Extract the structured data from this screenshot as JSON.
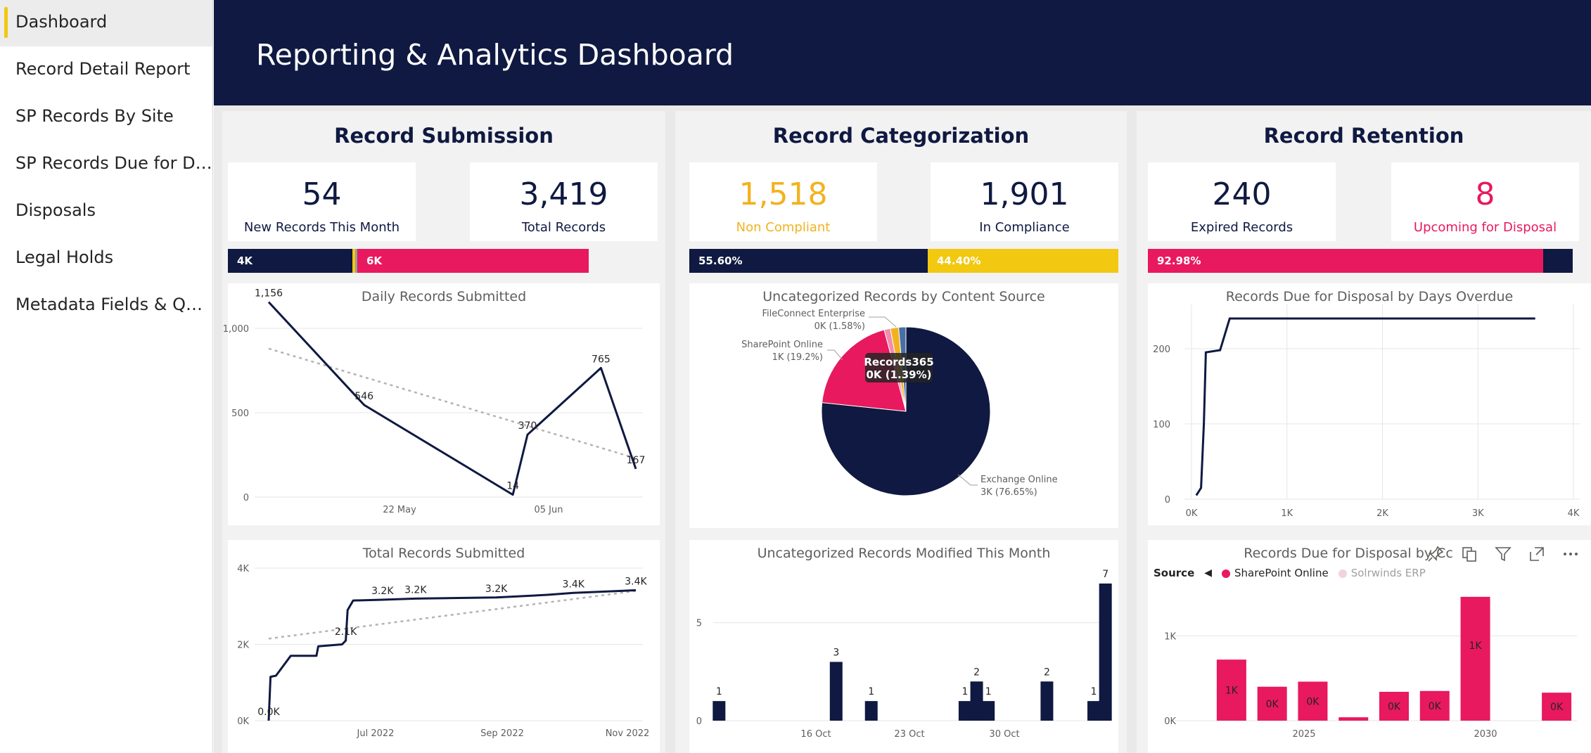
{
  "nav": {
    "items": [
      {
        "label": "Dashboard",
        "active": true
      },
      {
        "label": "Record Detail Report"
      },
      {
        "label": "SP Records By Site"
      },
      {
        "label": "SP Records Due for Disp..."
      },
      {
        "label": "Disposals"
      },
      {
        "label": "Legal Holds"
      },
      {
        "label": "Metadata Fields & Quer..."
      }
    ]
  },
  "header": {
    "title": "Reporting & Analytics Dashboard"
  },
  "colors": {
    "navy": "#0f1941",
    "pink": "#e8195e",
    "yellow": "#f2c811",
    "trend": "#b3b3b3"
  },
  "panels": {
    "submission": {
      "title": "Record Submission",
      "cards": [
        {
          "value": "54",
          "label": "New Records This Month"
        },
        {
          "value": "3,419",
          "label": "Total Records"
        }
      ],
      "bar": {
        "segments": [
          {
            "label": "4K",
            "fraction": 0.35
          },
          {
            "label": "6K",
            "fraction": 0.62
          }
        ]
      }
    },
    "categorization": {
      "title": "Record Categorization",
      "cards": [
        {
          "value": "1,518",
          "label": "Non Compliant"
        },
        {
          "value": "1,901",
          "label": "In Compliance"
        }
      ],
      "bar": {
        "segments": [
          {
            "label": "55.60%",
            "fraction": 0.556
          },
          {
            "label": "44.40%",
            "fraction": 0.444
          }
        ]
      }
    },
    "retention": {
      "title": "Record Retention",
      "cards": [
        {
          "value": "240",
          "label": "Expired Records"
        },
        {
          "value": "8",
          "label": "Upcoming for Disposal"
        }
      ],
      "bar": {
        "segments": [
          {
            "label": "92.98%",
            "fraction": 0.9298
          },
          {
            "label": "",
            "fraction": 0.0702
          }
        ]
      }
    }
  },
  "chart_data": [
    {
      "id": "daily",
      "type": "line",
      "title": "Daily Records Submitted",
      "x_ticks": [
        "22 May",
        "05 Jun"
      ],
      "y_ticks": [
        "0",
        "500",
        "1,000"
      ],
      "ylim": [
        0,
        1100
      ],
      "points": [
        {
          "t": 0,
          "y": 1156,
          "label": "1,156"
        },
        {
          "t": 0.26,
          "y": 546,
          "label": "546"
        },
        {
          "t": 0.665,
          "y": 14,
          "label": "14"
        },
        {
          "t": 0.705,
          "y": 370,
          "label": "370"
        },
        {
          "t": 0.905,
          "y": 765,
          "label": "765"
        },
        {
          "t": 1.0,
          "y": 167,
          "label": "167"
        }
      ],
      "trend": [
        880,
        230
      ]
    },
    {
      "id": "total",
      "type": "line",
      "title": "Total Records Submitted",
      "x_ticks": [
        "Jul 2022",
        "Sep 2022",
        "Nov 2022"
      ],
      "y_ticks": [
        "0K",
        "2K",
        "4K"
      ],
      "ylim": [
        0,
        4000
      ],
      "points": [
        {
          "t": 0.0,
          "y": 0,
          "label": "0.0K"
        },
        {
          "t": 0.005,
          "y": 1150
        },
        {
          "t": 0.02,
          "y": 1180
        },
        {
          "t": 0.06,
          "y": 1700
        },
        {
          "t": 0.13,
          "y": 1700
        },
        {
          "t": 0.135,
          "y": 1950
        },
        {
          "t": 0.2,
          "y": 2000
        },
        {
          "t": 0.21,
          "y": 2100,
          "label": "2.1K"
        },
        {
          "t": 0.215,
          "y": 2900
        },
        {
          "t": 0.23,
          "y": 3150
        },
        {
          "t": 0.31,
          "y": 3170,
          "label": "3.2K"
        },
        {
          "t": 0.4,
          "y": 3200,
          "label": "3.2K"
        },
        {
          "t": 0.62,
          "y": 3230,
          "label": "3.2K"
        },
        {
          "t": 0.76,
          "y": 3300
        },
        {
          "t": 0.83,
          "y": 3350,
          "label": "3.4K"
        },
        {
          "t": 1.0,
          "y": 3420,
          "label": "3.4K"
        }
      ],
      "trend": [
        2150,
        3400
      ]
    },
    {
      "id": "pie",
      "type": "pie",
      "title": "Uncategorized Records by Content Source",
      "slices": [
        {
          "name": "Exchange Online",
          "value": 76.65,
          "label": "Exchange Online",
          "sub": "3K (76.65%)",
          "color": "#0f1941"
        },
        {
          "name": "SharePoint Online",
          "value": 19.2,
          "label": "SharePoint Online",
          "sub": "1K (19.2%)",
          "color": "#e8195e"
        },
        {
          "name": "Other",
          "value": 1.18,
          "label": "",
          "sub": "",
          "color": "#f08cb0"
        },
        {
          "name": "FileConnect Enterprise",
          "value": 1.58,
          "label": "FileConnect Enterprise",
          "sub": "0K (1.58%)",
          "color": "#f2b21f"
        },
        {
          "name": "Records365",
          "value": 1.39,
          "label": "Records365",
          "sub": "0K (1.39%)",
          "color": "#4a6fa5"
        }
      ]
    },
    {
      "id": "modified",
      "type": "bar",
      "title": "Uncategorized Records Modified This Month",
      "x_ticks": [
        "16 Oct",
        "23 Oct",
        "30 Oct"
      ],
      "y_ticks": [
        "0",
        "5"
      ],
      "ylim": [
        0,
        7.5
      ],
      "bars": [
        {
          "slot": 0,
          "value": 1
        },
        {
          "slot": 10,
          "value": 3
        },
        {
          "slot": 13,
          "value": 1
        },
        {
          "slot": 21,
          "value": 1
        },
        {
          "slot": 22,
          "value": 2
        },
        {
          "slot": 23,
          "value": 1
        },
        {
          "slot": 28,
          "value": 2
        },
        {
          "slot": 32,
          "value": 1
        },
        {
          "slot": 33,
          "value": 7
        }
      ],
      "slots": 34
    },
    {
      "id": "overdue",
      "type": "line",
      "title": "Records Due for Disposal by Days Overdue",
      "x_ticks": [
        "0K",
        "1K",
        "2K",
        "3K",
        "4K"
      ],
      "xlim": [
        0,
        4000
      ],
      "y_ticks": [
        "0",
        "100",
        "200"
      ],
      "ylim": [
        0,
        240
      ],
      "points": [
        {
          "x": 50,
          "y": 5
        },
        {
          "x": 100,
          "y": 15
        },
        {
          "x": 130,
          "y": 100
        },
        {
          "x": 150,
          "y": 195
        },
        {
          "x": 300,
          "y": 198
        },
        {
          "x": 400,
          "y": 240
        },
        {
          "x": 3600,
          "y": 240
        }
      ]
    },
    {
      "id": "due-source",
      "type": "bar",
      "title": "Records Due for Disposal by Cc",
      "legend_title": "Source",
      "legend": [
        {
          "name": "SharePoint Online",
          "color": "#e8195e"
        },
        {
          "name": "Solrwinds ERP",
          "color": "#f1d3df"
        }
      ],
      "x_ticks": [
        "2025",
        "2030"
      ],
      "y_ticks": [
        "0K",
        "1K"
      ],
      "ylim": [
        0,
        1550
      ],
      "bars": [
        {
          "slot": 0,
          "value": 720,
          "label": "1K"
        },
        {
          "slot": 1,
          "value": 400,
          "label": "0K"
        },
        {
          "slot": 2,
          "value": 460,
          "label": "0K"
        },
        {
          "slot": 3,
          "value": 40,
          "label": ""
        },
        {
          "slot": 4,
          "value": 340,
          "label": "0K"
        },
        {
          "slot": 5,
          "value": 350,
          "label": "0K"
        },
        {
          "slot": 6,
          "value": 1460,
          "label": "1K"
        },
        {
          "slot": 8,
          "value": 330,
          "label": "0K"
        }
      ],
      "slots": 9
    }
  ]
}
